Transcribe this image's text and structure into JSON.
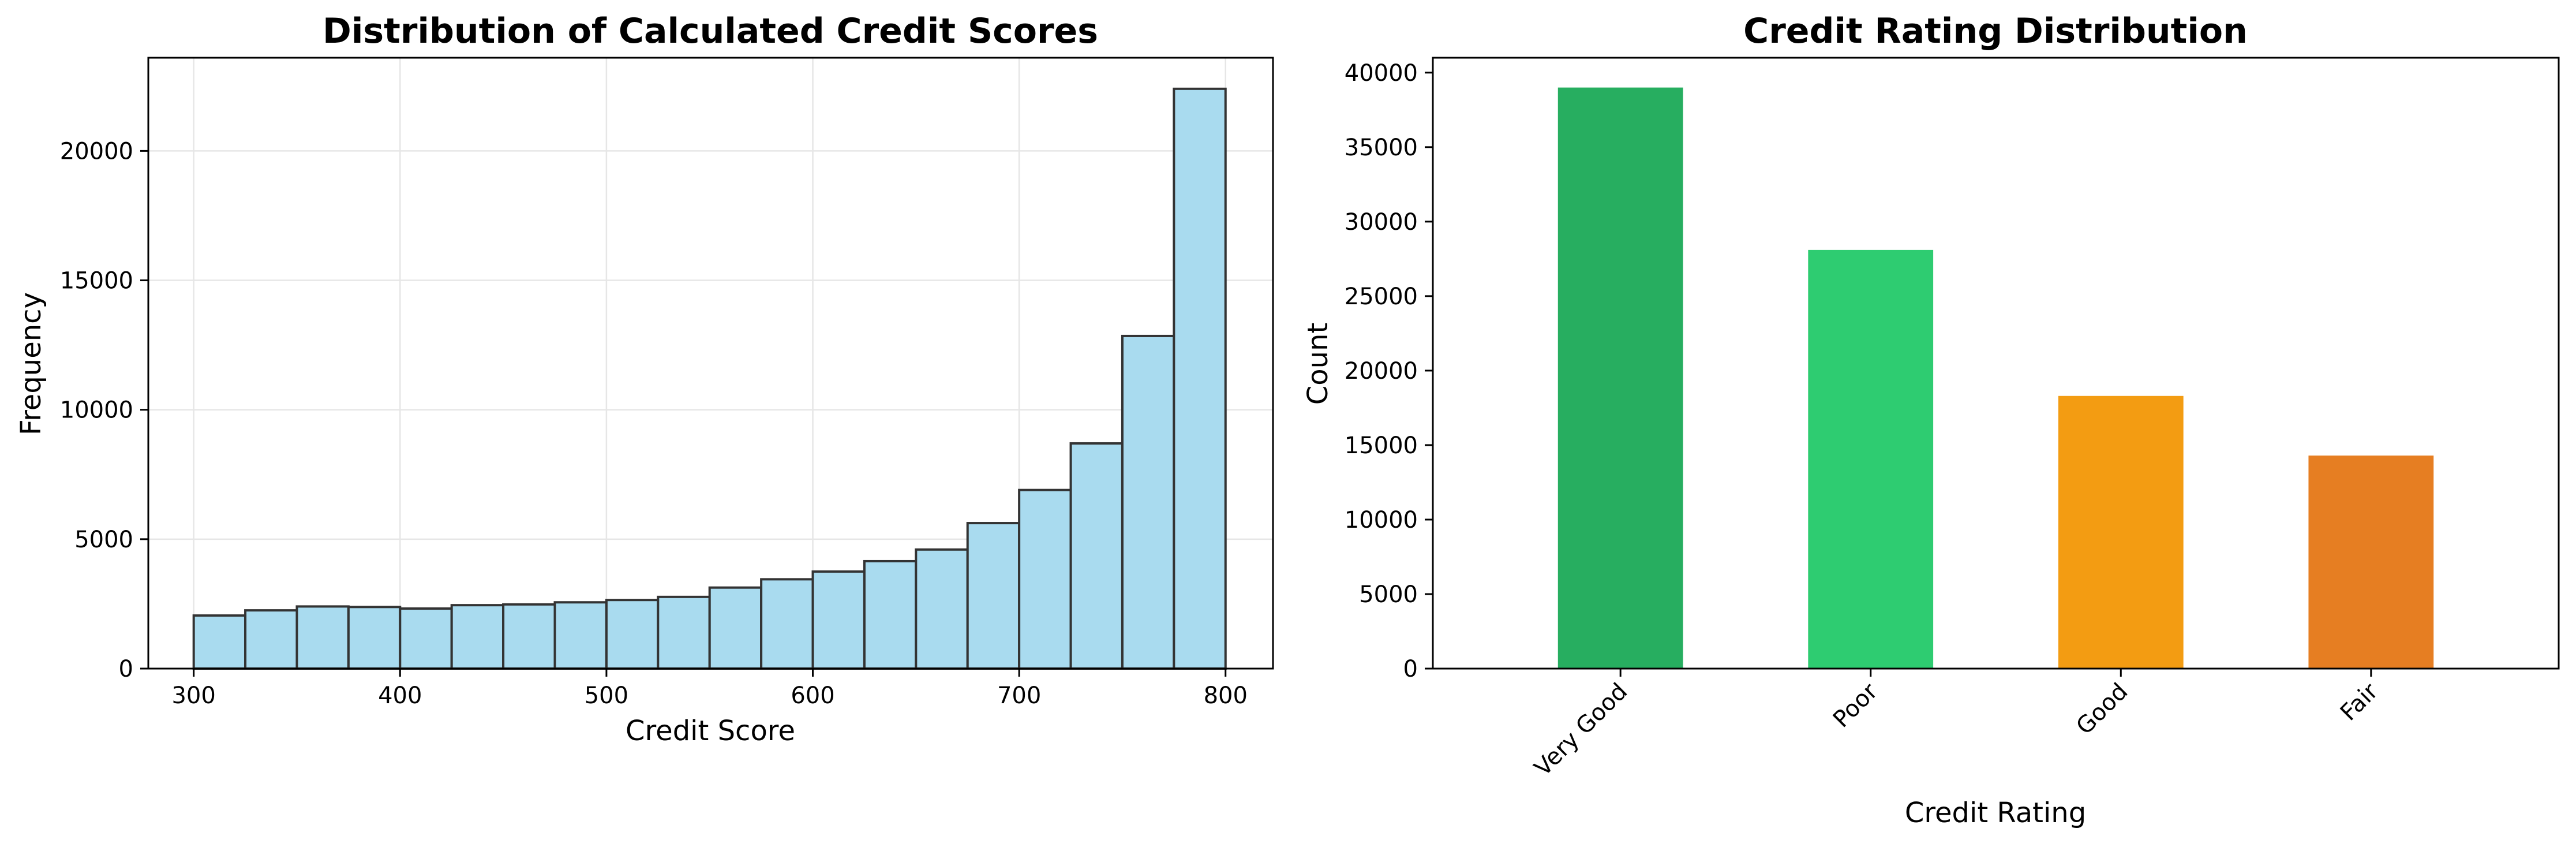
{
  "chart_data": [
    {
      "type": "bar",
      "subtype": "histogram",
      "title": "Distribution of Calculated Credit Scores",
      "xlabel": "Credit Score",
      "ylabel": "Frequency",
      "xlim": [
        278,
        823
      ],
      "ylim": [
        0,
        23600
      ],
      "xticks": [
        300,
        400,
        500,
        600,
        700,
        800
      ],
      "yticks": [
        0,
        5000,
        10000,
        15000,
        20000
      ],
      "grid": true,
      "bar_color": "#a9dbef",
      "edge_color": "#333333",
      "bin_edges": [
        300,
        325,
        350,
        375,
        400,
        425,
        450,
        475,
        500,
        525,
        550,
        575,
        600,
        625,
        650,
        675,
        700,
        725,
        750,
        775,
        800
      ],
      "values": [
        2050,
        2250,
        2400,
        2380,
        2320,
        2450,
        2480,
        2560,
        2650,
        2770,
        3130,
        3450,
        3750,
        4150,
        4600,
        5620,
        6900,
        8700,
        12850,
        22400
      ]
    },
    {
      "type": "bar",
      "title": "Credit Rating Distribution",
      "xlabel": "Credit Rating",
      "ylabel": "Count",
      "ylim": [
        0,
        41000
      ],
      "yticks": [
        0,
        5000,
        10000,
        15000,
        20000,
        25000,
        30000,
        35000,
        40000
      ],
      "grid": false,
      "categories": [
        "Very Good",
        "Poor",
        "Good",
        "Fair"
      ],
      "values": [
        39000,
        28100,
        18300,
        14300
      ],
      "colors": [
        "#27ae60",
        "#2ecc71",
        "#f39c12",
        "#e67e22"
      ],
      "tick_rotation": 45
    }
  ]
}
